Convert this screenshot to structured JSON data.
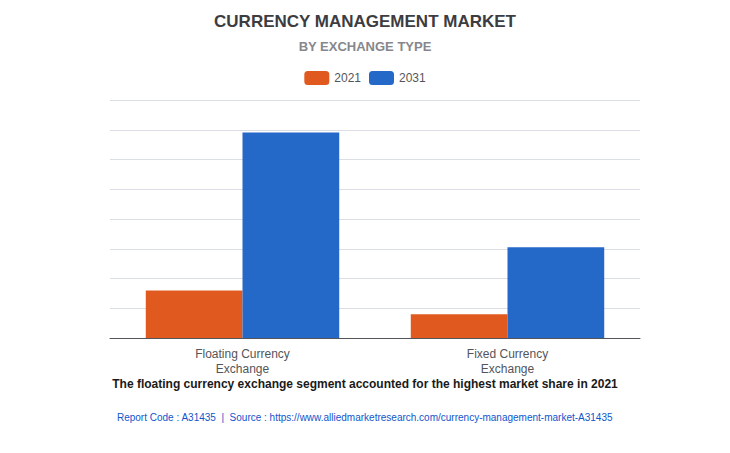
{
  "chart_data": {
    "type": "bar",
    "title": "CURRENCY MANAGEMENT MARKET",
    "subtitle": "BY EXCHANGE TYPE",
    "categories": [
      "Floating Currency\nExchange",
      "Fixed Currency\nExchange"
    ],
    "series": [
      {
        "name": "2021",
        "color": "#E05A20",
        "values": [
          2.2,
          1.1
        ]
      },
      {
        "name": "2031",
        "color": "#2468C8",
        "values": [
          9.5,
          4.2
        ]
      }
    ],
    "ylim": [
      0,
      11
    ],
    "yticks": [
      0,
      1.375,
      2.75,
      4.125,
      5.5,
      6.875,
      8.25,
      9.625,
      11
    ],
    "grid": true,
    "tick_labels": "x",
    "legend": "top",
    "annotations": [
      "The floating currency exchange segment accounted for the highest market share in 2021",
      "Report Code : A31435  |  Source : https://www.alliedmarketresearch.com/currency-management-market-A31435"
    ]
  }
}
